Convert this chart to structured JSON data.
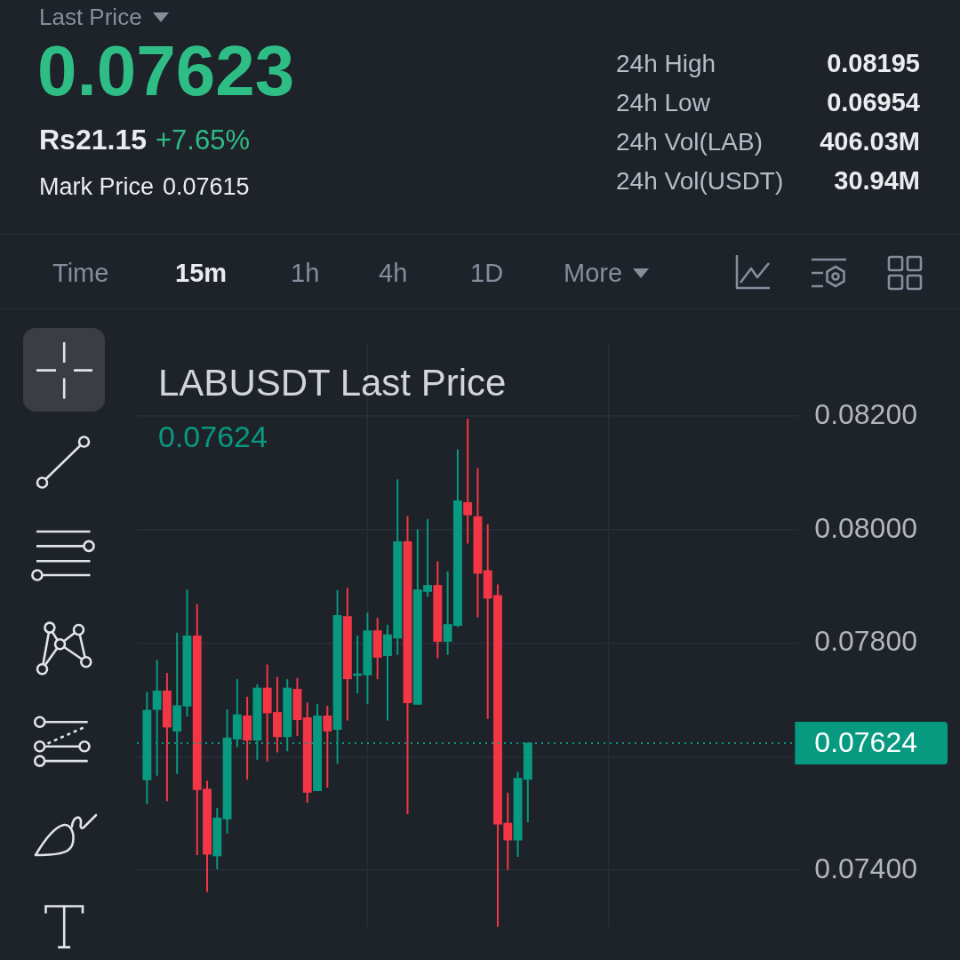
{
  "chart_data": [
    {
      "type": "other",
      "annotations": [
        "Last Price",
        "0.07623",
        "Rs21.15",
        "+7.65%",
        "Mark Price",
        "0.07615",
        "24h High",
        "0.08195",
        "24h Low",
        "0.06954",
        "24h Vol(LAB)",
        "406.03M",
        "24h Vol(USDT)",
        "30.94M",
        "Time",
        "15m",
        "1h",
        "4h",
        "1D",
        "More"
      ]
    },
    {
      "type": "candlestick",
      "title": "LABUSDT Last Price",
      "annotations": [
        "0.07624"
      ],
      "categories": [
        null,
        null,
        null,
        null,
        null,
        null,
        null,
        null,
        null,
        null,
        null,
        null,
        null,
        null,
        null,
        null,
        null,
        null,
        null,
        null,
        null,
        null,
        null,
        null,
        null,
        null,
        null,
        null,
        null,
        null,
        null,
        null,
        null,
        null,
        null,
        null,
        null,
        null,
        null,
        null,
        null,
        null,
        null,
        null,
        null,
        null,
        null,
        null,
        null,
        null,
        null,
        null,
        null,
        null,
        null,
        null,
        null,
        null,
        null,
        null,
        null,
        null,
        null,
        null,
        null
      ],
      "ohlc": [
        [
          0.07559,
          0.07714,
          0.07517,
          0.07682
        ],
        [
          0.07683,
          0.0777,
          0.07567,
          0.07716
        ],
        [
          0.07716,
          0.07747,
          0.07522,
          0.07652
        ],
        [
          0.07645,
          0.07818,
          0.0757,
          0.0769
        ],
        [
          0.07689,
          0.07894,
          0.07671,
          0.07813
        ],
        [
          0.07813,
          0.07868,
          0.07427,
          0.07542
        ],
        [
          0.07543,
          0.07557,
          0.07362,
          0.07428
        ],
        [
          0.07425,
          0.07509,
          0.07402,
          0.07492
        ],
        [
          0.0749,
          0.07683,
          0.07465,
          0.07633
        ],
        [
          0.07631,
          0.07736,
          0.07617,
          0.07674
        ],
        [
          0.07672,
          0.07705,
          0.0756,
          0.07629
        ],
        [
          0.07629,
          0.07727,
          0.07595,
          0.07721
        ],
        [
          0.07721,
          0.07762,
          0.07592,
          0.07677
        ],
        [
          0.07678,
          0.0774,
          0.07608,
          0.07635
        ],
        [
          0.07635,
          0.07736,
          0.0761,
          0.07721
        ],
        [
          0.07719,
          0.07738,
          0.07637,
          0.07665
        ],
        [
          0.07669,
          0.07695,
          0.07519,
          0.07537
        ],
        [
          0.0754,
          0.07692,
          0.0754,
          0.07672
        ],
        [
          0.07672,
          0.07689,
          0.07546,
          0.07645
        ],
        [
          0.07648,
          0.07893,
          0.07588,
          0.07849
        ],
        [
          0.07847,
          0.07897,
          0.07664,
          0.07737
        ],
        [
          0.07743,
          0.07813,
          0.07712,
          0.07746
        ],
        [
          0.07744,
          0.07853,
          0.07693,
          0.07822
        ],
        [
          0.07822,
          0.07844,
          0.07737,
          0.07775
        ],
        [
          0.07778,
          0.07832,
          0.07664,
          0.07815
        ],
        [
          0.07809,
          0.08088,
          0.0778,
          0.07979
        ],
        [
          0.07979,
          0.08023,
          0.07499,
          0.07695
        ],
        [
          0.07692,
          0.08,
          0.07692,
          0.07894
        ],
        [
          0.07891,
          0.08018,
          0.07882,
          0.07902
        ],
        [
          0.07902,
          0.07944,
          0.07774,
          0.07803
        ],
        [
          0.07803,
          0.07926,
          0.0778,
          0.07833
        ],
        [
          0.07831,
          0.08141,
          0.07829,
          0.08051
        ],
        [
          0.08048,
          0.08195,
          0.07976,
          0.08026
        ],
        [
          0.08023,
          0.08108,
          0.07846,
          0.07923
        ],
        [
          0.07928,
          0.08009,
          0.07667,
          0.07879
        ],
        [
          0.07884,
          0.07903,
          0.073,
          0.07481
        ],
        [
          0.07483,
          0.07536,
          0.07401,
          0.07453
        ],
        [
          0.07453,
          0.07573,
          0.07424,
          0.07562
        ],
        [
          0.0756,
          0.07624,
          0.07485,
          0.07624
        ],
        null,
        null,
        null,
        null,
        null,
        null,
        null,
        null,
        null,
        null,
        null,
        null,
        null,
        null,
        null,
        null,
        null,
        null,
        null,
        null,
        null,
        null,
        null,
        null,
        null,
        null
      ],
      "colors": [
        "#089981",
        "#089981",
        "#f23645",
        "#089981",
        "#089981",
        "#f23645",
        "#f23645",
        "#089981",
        "#089981",
        "#089981",
        "#f23645",
        "#089981",
        "#f23645",
        "#f23645",
        "#089981",
        "#f23645",
        "#f23645",
        "#089981",
        "#f23645",
        "#089981",
        "#f23645",
        "#089981",
        "#089981",
        "#f23645",
        "#089981",
        "#089981",
        "#f23645",
        "#089981",
        "#089981",
        "#f23645",
        "#089981",
        "#089981",
        "#f23645",
        "#f23645",
        "#f23645",
        "#f23645",
        "#f23645",
        "#089981",
        "#089981",
        null,
        null,
        null,
        null,
        null,
        null,
        null,
        null,
        null,
        null,
        null,
        null,
        null,
        null,
        null,
        null,
        null,
        null,
        null,
        null,
        null,
        null,
        null,
        null,
        null,
        null
      ],
      "ylim": [
        0.073,
        0.0833
      ],
      "yticks": [
        {
          "value": 0.074,
          "label": "0.07400"
        },
        {
          "value": 0.076,
          "label": null
        },
        {
          "value": 0.078,
          "label": "0.07800"
        },
        {
          "value": 0.08,
          "label": "0.08000"
        },
        {
          "value": 0.082,
          "label": "0.08200"
        }
      ],
      "grid": true,
      "ref_lines": [
        {
          "axis": "y",
          "value": 0.07624,
          "label": "0.07624",
          "color": "#089981",
          "line_style": "dotted"
        }
      ]
    }
  ]
}
